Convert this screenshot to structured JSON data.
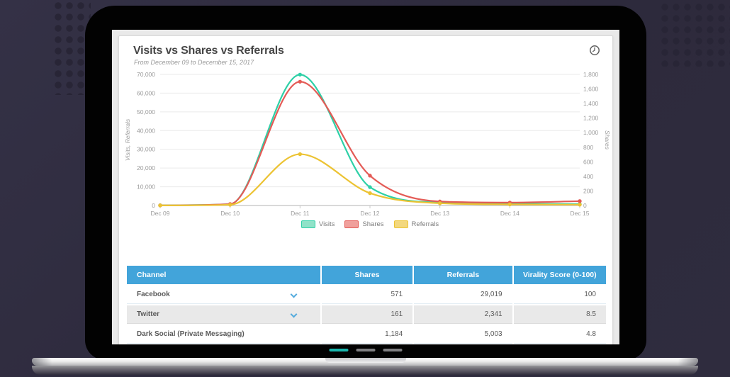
{
  "page": {
    "background": "#2f2c3e",
    "dot_color": "#282536"
  },
  "card": {
    "title": "Visits vs Shares vs Referrals",
    "subtitle": "From December 09 to December 15, 2017",
    "clock_icon": "clock-history-icon"
  },
  "chart_data": {
    "type": "line",
    "categories": [
      "Dec 09",
      "Dec 10",
      "Dec 11",
      "Dec 12",
      "Dec 13",
      "Dec 14",
      "Dec 15"
    ],
    "series": [
      {
        "name": "Visits",
        "axis": "left",
        "color": "#2ed0a7",
        "fill": "#90e2c8",
        "values": [
          100,
          700,
          69900,
          9800,
          1600,
          1000,
          700
        ]
      },
      {
        "name": "Shares",
        "axis": "right",
        "color": "#e45b56",
        "fill": "#f0a09c",
        "values": [
          2,
          20,
          1700,
          410,
          55,
          40,
          60
        ]
      },
      {
        "name": "Referrals",
        "axis": "left",
        "color": "#ecc333",
        "fill": "#f3d87e",
        "values": [
          50,
          400,
          27400,
          6600,
          1200,
          600,
          450
        ]
      }
    ],
    "left_axis": {
      "title": "Visits, Referrals",
      "min": 0,
      "max": 70000,
      "tick_step": 10000,
      "tick_labels": [
        "0",
        "10,000",
        "20,000",
        "30,000",
        "40,000",
        "50,000",
        "60,000",
        "70,000"
      ]
    },
    "right_axis": {
      "title": "Shares",
      "min": 0,
      "max": 1800,
      "tick_step": 200,
      "tick_labels": [
        "0",
        "200",
        "400",
        "600",
        "800",
        "1,000",
        "1,200",
        "1,400",
        "1,600",
        "1,800"
      ]
    },
    "grid": true,
    "legend_position": "bottom"
  },
  "table": {
    "header_bg": "#42a4da",
    "columns": [
      {
        "label": "Channel"
      },
      {
        "label": "Shares"
      },
      {
        "label": "Referrals"
      },
      {
        "label": "Virality Score (0-100)"
      }
    ],
    "rows": [
      {
        "channel": "Facebook",
        "expandable": true,
        "shares": "571",
        "referrals": "29,019",
        "virality": "100"
      },
      {
        "channel": "Twitter",
        "expandable": true,
        "shares": "161",
        "referrals": "2,341",
        "virality": "8.5"
      },
      {
        "channel": "Dark Social (Private Messaging)",
        "expandable": false,
        "shares": "1,184",
        "referrals": "5,003",
        "virality": "4.8"
      }
    ]
  },
  "carousel": {
    "active_color": "#19b7ae",
    "inactive_color": "#7f7f82",
    "dashes": [
      {
        "active": true
      },
      {
        "active": false
      },
      {
        "active": false
      }
    ]
  }
}
